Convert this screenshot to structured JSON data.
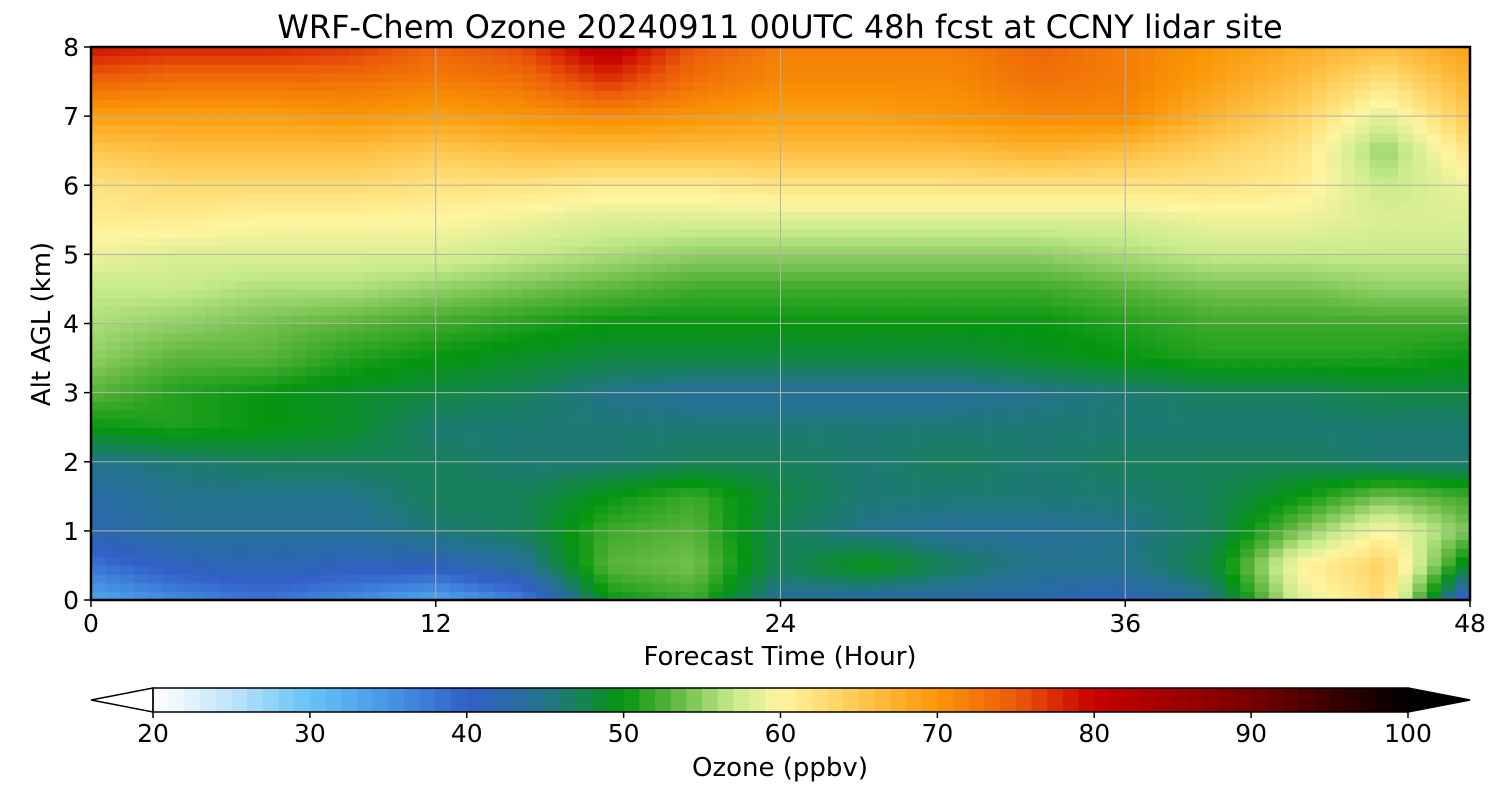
{
  "chart_data": {
    "type": "heatmap",
    "title": "WRF-Chem Ozone  20240911 00UTC 48h fcst at CCNY lidar site",
    "xlabel": "Forecast Time (Hour)",
    "ylabel": "Alt AGL (km)",
    "xlim": [
      0,
      48
    ],
    "ylim": [
      0,
      8
    ],
    "xticks": [
      0,
      12,
      24,
      36,
      48
    ],
    "yticks": [
      0,
      1,
      2,
      3,
      4,
      5,
      6,
      7,
      8
    ],
    "grid": true,
    "x": [
      0,
      3,
      6,
      9,
      12,
      15,
      18,
      21,
      24,
      27,
      30,
      33,
      36,
      39,
      42,
      45,
      48
    ],
    "y": [
      0,
      0.5,
      1,
      1.5,
      2,
      2.5,
      3,
      3.5,
      4,
      4.5,
      5,
      5.5,
      6,
      6.5,
      7,
      7.5,
      8
    ],
    "z": [
      [
        33,
        36,
        38,
        36,
        33,
        37,
        50,
        52,
        44,
        43,
        43,
        42,
        41,
        45,
        58,
        63,
        38
      ],
      [
        38,
        41,
        42,
        41,
        41,
        44,
        53,
        54,
        47,
        50,
        47,
        45,
        45,
        48,
        60,
        64,
        48
      ],
      [
        42,
        44,
        44,
        44,
        46,
        47,
        52,
        53,
        47,
        45,
        44,
        44,
        45,
        47,
        54,
        60,
        54
      ],
      [
        43,
        45,
        45,
        45,
        47,
        47,
        50,
        52,
        48,
        46,
        46,
        46,
        46,
        47,
        50,
        54,
        52
      ],
      [
        45,
        46,
        47,
        47,
        47,
        46,
        46,
        47,
        47,
        46,
        47,
        46,
        47,
        47,
        47,
        46,
        46
      ],
      [
        50,
        51,
        50,
        49,
        46,
        46,
        46,
        46,
        46,
        46,
        46,
        46,
        46,
        46,
        46,
        46,
        46
      ],
      [
        53,
        51,
        50,
        49,
        48,
        47,
        45,
        44,
        44,
        44,
        44,
        45,
        46,
        47,
        47,
        48,
        48
      ],
      [
        55,
        53,
        53,
        51,
        50,
        49,
        48,
        48,
        48,
        48,
        48,
        49,
        50,
        51,
        51,
        51,
        50
      ],
      [
        56,
        55,
        54,
        53,
        52,
        51,
        50,
        50,
        50,
        50,
        50,
        50,
        51,
        52,
        52,
        52,
        52
      ],
      [
        57,
        57,
        56,
        56,
        55,
        54,
        53,
        52,
        52,
        52,
        52,
        52,
        53,
        54,
        54,
        55,
        55
      ],
      [
        59,
        58,
        58,
        58,
        58,
        57,
        56,
        55,
        55,
        55,
        55,
        55,
        56,
        57,
        57,
        57,
        57
      ],
      [
        61,
        61,
        60,
        60,
        60,
        59,
        58,
        58,
        58,
        58,
        58,
        58,
        58,
        59,
        59,
        58,
        58
      ],
      [
        62,
        63,
        63,
        63,
        62,
        62,
        61,
        61,
        62,
        62,
        62,
        62,
        62,
        62,
        61,
        57,
        59
      ],
      [
        65,
        66,
        66,
        66,
        65,
        66,
        66,
        66,
        66,
        66,
        66,
        67,
        66,
        64,
        62,
        55,
        62
      ],
      [
        69,
        69,
        69,
        70,
        69,
        70,
        71,
        70,
        69,
        69,
        70,
        71,
        71,
        67,
        64,
        58,
        65
      ],
      [
        74,
        73,
        73,
        73,
        72,
        73,
        77,
        73,
        71,
        71,
        71,
        73,
        72,
        69,
        66,
        62,
        67
      ],
      [
        79,
        78,
        78,
        77,
        74,
        76,
        82,
        75,
        72,
        72,
        72,
        74,
        72,
        70,
        68,
        66,
        69
      ]
    ],
    "colorbar": {
      "label": "Ozone  (ppbv)",
      "min": 20,
      "max": 100,
      "ticks": [
        20,
        30,
        40,
        50,
        60,
        70,
        80,
        90,
        100
      ],
      "extend": "both"
    }
  }
}
